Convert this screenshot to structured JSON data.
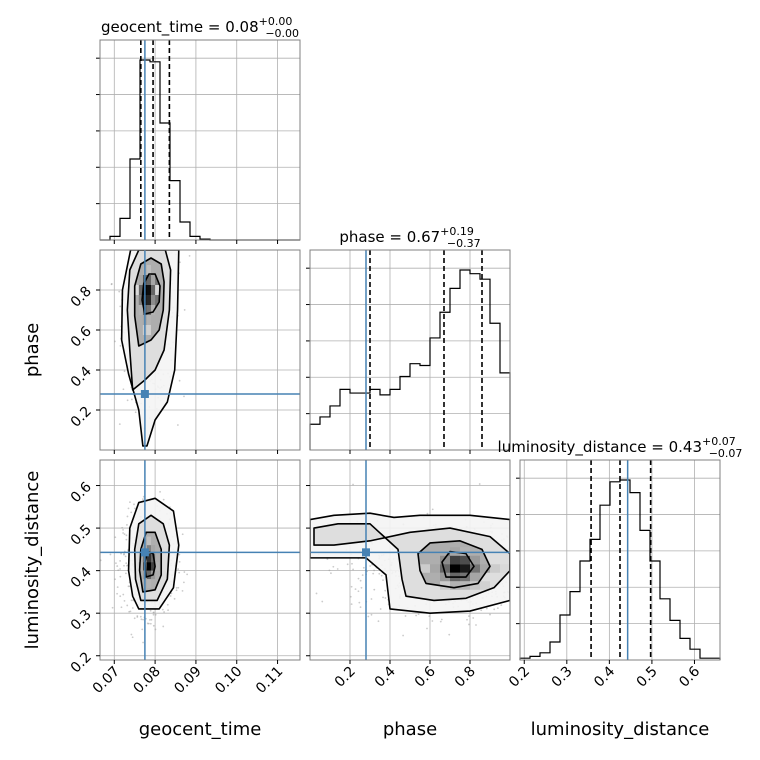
{
  "chart_data": {
    "type": "corner",
    "parameters": [
      {
        "name": "geocent_time",
        "xlabel": "geocent_time",
        "title_main": "geocent_time = 0.08",
        "title_upper": "+0.00",
        "title_lower": "−0.00",
        "range": [
          0.0665,
          0.1155
        ],
        "ticks": [
          0.07,
          0.08,
          0.09,
          0.1,
          0.11
        ],
        "tick_labels": [
          "0.07",
          "0.08",
          "0.09",
          "0.10",
          "0.11"
        ],
        "truth": 0.0775,
        "median": 0.0795,
        "lower": 0.0765,
        "upper": 0.0835,
        "hist_edges": [
          0.0665,
          0.06895,
          0.0714,
          0.07385,
          0.0763,
          0.07875,
          0.0812,
          0.08365,
          0.0861,
          0.08855,
          0.091,
          0.09345,
          0.0959,
          0.09835,
          0.1008,
          0.10325,
          0.1057,
          0.10815,
          0.1106,
          0.11305,
          0.1155
        ],
        "hist_counts": [
          0,
          0.02,
          0.12,
          0.45,
          1.0,
          0.99,
          0.65,
          0.33,
          0.1,
          0.02,
          0.005,
          0,
          0,
          0,
          0,
          0,
          0,
          0,
          0,
          0
        ]
      },
      {
        "name": "phase",
        "xlabel": "phase",
        "ylabel": "phase",
        "title_main": "phase = 0.67",
        "title_upper": "+0.19",
        "title_lower": "−0.37",
        "range": [
          0.0,
          1.0
        ],
        "ticks": [
          0.2,
          0.4,
          0.6,
          0.8
        ],
        "tick_labels": [
          "0.2",
          "0.4",
          "0.6",
          "0.8"
        ],
        "truth": 0.28,
        "median": 0.67,
        "lower": 0.3,
        "upper": 0.86,
        "hist_edges": [
          0.0,
          0.05,
          0.1,
          0.15,
          0.2,
          0.25,
          0.3,
          0.35,
          0.4,
          0.45,
          0.5,
          0.55,
          0.6,
          0.65,
          0.7,
          0.75,
          0.8,
          0.85,
          0.9,
          0.95,
          1.0
        ],
        "hist_counts": [
          0.14,
          0.18,
          0.24,
          0.33,
          0.31,
          0.31,
          0.33,
          0.3,
          0.33,
          0.4,
          0.47,
          0.46,
          0.61,
          0.75,
          0.88,
          0.98,
          0.96,
          0.93,
          0.69,
          0.42
        ]
      },
      {
        "name": "luminosity_distance",
        "xlabel": "luminosity_distance",
        "ylabel": "luminosity_distance",
        "title_main": "luminosity_distance = 0.43",
        "title_upper": "+0.07",
        "title_lower": "−0.07",
        "range": [
          0.19,
          0.66
        ],
        "ticks": [
          0.2,
          0.3,
          0.4,
          0.5,
          0.6
        ],
        "tick_labels": [
          "0.2",
          "0.3",
          "0.4",
          "0.5",
          "0.6"
        ],
        "truth": 0.443,
        "median": 0.425,
        "lower": 0.357,
        "upper": 0.497,
        "hist_edges": [
          0.19,
          0.2135,
          0.237,
          0.2605,
          0.284,
          0.3075,
          0.331,
          0.3545,
          0.378,
          0.4015,
          0.425,
          0.4485,
          0.472,
          0.4955,
          0.519,
          0.5425,
          0.566,
          0.5895,
          0.613,
          0.6365,
          0.66
        ],
        "hist_counts": [
          0.01,
          0.02,
          0.04,
          0.1,
          0.25,
          0.38,
          0.55,
          0.67,
          0.86,
          0.99,
          1.0,
          0.93,
          0.72,
          0.55,
          0.34,
          0.22,
          0.12,
          0.06,
          0.01,
          0.01
        ]
      }
    ],
    "pairs": [
      {
        "x_param": "geocent_time",
        "y_param": "phase",
        "center": [
          0.0785,
          0.77
        ],
        "contours": [
          [
            [
              0.0775,
              0.68
            ],
            [
              0.0795,
              0.69
            ],
            [
              0.081,
              0.74
            ],
            [
              0.0812,
              0.82
            ],
            [
              0.08,
              0.88
            ],
            [
              0.0785,
              0.88
            ],
            [
              0.0772,
              0.83
            ],
            [
              0.0768,
              0.75
            ]
          ],
          [
            [
              0.076,
              0.52
            ],
            [
              0.079,
              0.55
            ],
            [
              0.081,
              0.6
            ],
            [
              0.082,
              0.7
            ],
            [
              0.0822,
              0.84
            ],
            [
              0.0815,
              0.93
            ],
            [
              0.079,
              0.96
            ],
            [
              0.0765,
              0.93
            ],
            [
              0.075,
              0.82
            ],
            [
              0.075,
              0.67
            ]
          ],
          [
            [
              0.0745,
              0.3
            ],
            [
              0.0775,
              0.35
            ],
            [
              0.08,
              0.4
            ],
            [
              0.0822,
              0.5
            ],
            [
              0.0835,
              0.7
            ],
            [
              0.0838,
              0.9
            ],
            [
              0.0825,
              1.0
            ],
            [
              0.076,
              1.0
            ],
            [
              0.0738,
              0.9
            ],
            [
              0.0732,
              0.7
            ],
            [
              0.0738,
              0.5
            ]
          ],
          [
            [
              0.078,
              0.02
            ],
            [
              0.08,
              0.15
            ],
            [
              0.083,
              0.24
            ],
            [
              0.0848,
              0.4
            ],
            [
              0.0855,
              0.7
            ],
            [
              0.0858,
              1.0
            ],
            [
              0.074,
              1.0
            ],
            [
              0.072,
              0.8
            ],
            [
              0.0718,
              0.55
            ],
            [
              0.0735,
              0.38
            ],
            [
              0.076,
              0.2
            ],
            [
              0.077,
              0.02
            ]
          ]
        ],
        "density_cells": [
          [
            0.0775,
            0.8,
            1.0
          ],
          [
            0.0785,
            0.8,
            0.95
          ],
          [
            0.0775,
            0.75,
            0.9
          ],
          [
            0.0785,
            0.75,
            0.85
          ],
          [
            0.0765,
            0.8,
            0.6
          ],
          [
            0.0795,
            0.8,
            0.6
          ],
          [
            0.0775,
            0.85,
            0.65
          ],
          [
            0.0785,
            0.85,
            0.6
          ],
          [
            0.0775,
            0.7,
            0.6
          ],
          [
            0.0785,
            0.7,
            0.55
          ],
          [
            0.0765,
            0.75,
            0.5
          ],
          [
            0.0795,
            0.75,
            0.45
          ],
          [
            0.0765,
            0.85,
            0.35
          ],
          [
            0.0795,
            0.85,
            0.35
          ],
          [
            0.0765,
            0.7,
            0.3
          ],
          [
            0.0795,
            0.7,
            0.3
          ],
          [
            0.0775,
            0.65,
            0.35
          ],
          [
            0.0785,
            0.65,
            0.3
          ],
          [
            0.0775,
            0.9,
            0.3
          ],
          [
            0.0785,
            0.9,
            0.25
          ],
          [
            0.0775,
            0.6,
            0.2
          ],
          [
            0.0785,
            0.6,
            0.18
          ],
          [
            0.0755,
            0.8,
            0.15
          ],
          [
            0.0805,
            0.8,
            0.15
          ]
        ],
        "scatter_spread": [
          0.0035,
          0.28
        ],
        "scatter_count": 700
      },
      {
        "x_param": "geocent_time",
        "y_param": "luminosity_distance",
        "center": [
          0.0785,
          0.415
        ],
        "contours": [
          [
            [
              0.0778,
              0.385
            ],
            [
              0.0795,
              0.39
            ],
            [
              0.08,
              0.41
            ],
            [
              0.0795,
              0.44
            ],
            [
              0.0782,
              0.445
            ],
            [
              0.0775,
              0.42
            ]
          ],
          [
            [
              0.077,
              0.35
            ],
            [
              0.08,
              0.355
            ],
            [
              0.0815,
              0.39
            ],
            [
              0.0815,
              0.45
            ],
            [
              0.08,
              0.49
            ],
            [
              0.0778,
              0.49
            ],
            [
              0.0765,
              0.45
            ],
            [
              0.0762,
              0.4
            ]
          ],
          [
            [
              0.0765,
              0.33
            ],
            [
              0.0805,
              0.33
            ],
            [
              0.083,
              0.38
            ],
            [
              0.0835,
              0.46
            ],
            [
              0.082,
              0.51
            ],
            [
              0.079,
              0.53
            ],
            [
              0.076,
              0.51
            ],
            [
              0.075,
              0.45
            ],
            [
              0.0752,
              0.38
            ]
          ],
          [
            [
              0.076,
              0.31
            ],
            [
              0.081,
              0.31
            ],
            [
              0.0845,
              0.36
            ],
            [
              0.0858,
              0.46
            ],
            [
              0.0845,
              0.54
            ],
            [
              0.08,
              0.57
            ],
            [
              0.076,
              0.56
            ],
            [
              0.0738,
              0.5
            ],
            [
              0.0735,
              0.4
            ],
            [
              0.0745,
              0.34
            ]
          ]
        ],
        "density_cells": [
          [
            0.0785,
            0.41,
            1.0
          ],
          [
            0.0785,
            0.43,
            0.8
          ],
          [
            0.0795,
            0.41,
            0.75
          ],
          [
            0.0775,
            0.41,
            0.7
          ],
          [
            0.0795,
            0.43,
            0.6
          ],
          [
            0.0775,
            0.43,
            0.55
          ],
          [
            0.0785,
            0.39,
            0.6
          ],
          [
            0.0785,
            0.45,
            0.5
          ],
          [
            0.0775,
            0.39,
            0.4
          ],
          [
            0.0795,
            0.39,
            0.4
          ],
          [
            0.0775,
            0.45,
            0.35
          ],
          [
            0.0795,
            0.45,
            0.35
          ],
          [
            0.0785,
            0.37,
            0.3
          ],
          [
            0.0785,
            0.47,
            0.25
          ],
          [
            0.0805,
            0.41,
            0.3
          ],
          [
            0.0765,
            0.41,
            0.3
          ]
        ],
        "scatter_spread": [
          0.0035,
          0.065
        ],
        "scatter_count": 700
      },
      {
        "x_param": "phase",
        "y_param": "luminosity_distance",
        "center": [
          0.75,
          0.41
        ],
        "contours": [
          [
            [
              0.68,
              0.385
            ],
            [
              0.78,
              0.385
            ],
            [
              0.82,
              0.41
            ],
            [
              0.78,
              0.44
            ],
            [
              0.7,
              0.445
            ],
            [
              0.66,
              0.42
            ]
          ],
          [
            [
              0.58,
              0.37
            ],
            [
              0.72,
              0.36
            ],
            [
              0.84,
              0.37
            ],
            [
              0.9,
              0.41
            ],
            [
              0.86,
              0.45
            ],
            [
              0.75,
              0.47
            ],
            [
              0.6,
              0.465
            ],
            [
              0.54,
              0.44
            ],
            [
              0.55,
              0.4
            ]
          ],
          [
            [
              0.48,
              0.34
            ],
            [
              0.62,
              0.33
            ],
            [
              0.78,
              0.335
            ],
            [
              0.92,
              0.36
            ],
            [
              1.0,
              0.4
            ],
            [
              1.0,
              0.44
            ],
            [
              0.9,
              0.48
            ],
            [
              0.7,
              0.5
            ],
            [
              0.5,
              0.49
            ],
            [
              0.3,
              0.47
            ],
            [
              0.12,
              0.46
            ],
            [
              0.02,
              0.46
            ],
            [
              0.02,
              0.5
            ],
            [
              0.14,
              0.51
            ],
            [
              0.3,
              0.51
            ],
            [
              0.44,
              0.45
            ],
            [
              0.46,
              0.38
            ]
          ],
          [
            [
              0.4,
              0.31
            ],
            [
              0.6,
              0.3
            ],
            [
              0.8,
              0.305
            ],
            [
              1.0,
              0.33
            ],
            [
              1.0,
              0.52
            ],
            [
              0.8,
              0.53
            ],
            [
              0.55,
              0.53
            ],
            [
              0.42,
              0.525
            ],
            [
              0.3,
              0.535
            ],
            [
              0.12,
              0.53
            ],
            [
              0.0,
              0.52
            ],
            [
              0.0,
              0.43
            ],
            [
              0.12,
              0.43
            ],
            [
              0.28,
              0.43
            ],
            [
              0.38,
              0.39
            ]
          ]
        ],
        "density_cells": [
          [
            0.725,
            0.405,
            1.0
          ],
          [
            0.775,
            0.405,
            0.9
          ],
          [
            0.725,
            0.425,
            0.75
          ],
          [
            0.775,
            0.425,
            0.7
          ],
          [
            0.675,
            0.405,
            0.6
          ],
          [
            0.825,
            0.405,
            0.55
          ],
          [
            0.725,
            0.385,
            0.6
          ],
          [
            0.775,
            0.385,
            0.55
          ],
          [
            0.675,
            0.425,
            0.45
          ],
          [
            0.825,
            0.425,
            0.4
          ],
          [
            0.625,
            0.405,
            0.35
          ],
          [
            0.875,
            0.405,
            0.35
          ],
          [
            0.675,
            0.385,
            0.4
          ],
          [
            0.825,
            0.385,
            0.35
          ],
          [
            0.725,
            0.445,
            0.35
          ],
          [
            0.775,
            0.445,
            0.3
          ],
          [
            0.575,
            0.405,
            0.2
          ],
          [
            0.925,
            0.405,
            0.2
          ],
          [
            0.725,
            0.365,
            0.3
          ],
          [
            0.775,
            0.365,
            0.28
          ],
          [
            0.825,
            0.365,
            0.22
          ],
          [
            0.675,
            0.365,
            0.2
          ],
          [
            0.975,
            0.405,
            0.15
          ],
          [
            0.875,
            0.365,
            0.18
          ]
        ],
        "scatter_spread": [
          0.3,
          0.06
        ],
        "scatter_count": 900
      }
    ],
    "style": {
      "truth_color": "#4682b4",
      "line_color": "#000000",
      "grid_color": "#b0b0b0",
      "frame_color": "#808080",
      "scatter_color": "#a0a0a0",
      "grid": true
    }
  }
}
